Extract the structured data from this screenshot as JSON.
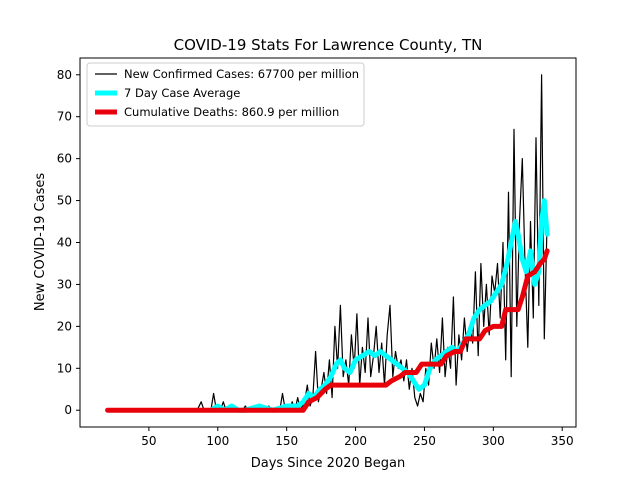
{
  "chart_data": {
    "type": "line",
    "title": "COVID-19 Stats For Lawrence County, TN",
    "xlabel": "Days Since 2020 Began",
    "ylabel": "New COVID-19 Cases",
    "xlim": [
      0,
      360
    ],
    "ylim": [
      -4,
      84
    ],
    "xticks": [
      50,
      100,
      150,
      200,
      250,
      300,
      350
    ],
    "yticks": [
      0,
      10,
      20,
      30,
      40,
      50,
      60,
      70,
      80
    ],
    "legend_position": "upper-left",
    "grid": false,
    "series": [
      {
        "name": "New Confirmed Cases: 67700 per million",
        "color": "#000000",
        "style": "thin",
        "points": [
          [
            20,
            0
          ],
          [
            85,
            0
          ],
          [
            88,
            2
          ],
          [
            90,
            0
          ],
          [
            95,
            0
          ],
          [
            97,
            4
          ],
          [
            99,
            0
          ],
          [
            100,
            1
          ],
          [
            102,
            0
          ],
          [
            104,
            2
          ],
          [
            106,
            0
          ],
          [
            110,
            1
          ],
          [
            112,
            0
          ],
          [
            118,
            0
          ],
          [
            120,
            1
          ],
          [
            122,
            0
          ],
          [
            126,
            0
          ],
          [
            128,
            1
          ],
          [
            130,
            0
          ],
          [
            135,
            0
          ],
          [
            137,
            1
          ],
          [
            139,
            0
          ],
          [
            145,
            0
          ],
          [
            147,
            4
          ],
          [
            149,
            0
          ],
          [
            152,
            0
          ],
          [
            154,
            2
          ],
          [
            156,
            0
          ],
          [
            158,
            3
          ],
          [
            160,
            0
          ],
          [
            163,
            2
          ],
          [
            165,
            6
          ],
          [
            167,
            1
          ],
          [
            169,
            3
          ],
          [
            171,
            14
          ],
          [
            173,
            2
          ],
          [
            175,
            5
          ],
          [
            177,
            9
          ],
          [
            179,
            4
          ],
          [
            181,
            12
          ],
          [
            183,
            3
          ],
          [
            185,
            20
          ],
          [
            187,
            10
          ],
          [
            189,
            25
          ],
          [
            191,
            8
          ],
          [
            193,
            12
          ],
          [
            195,
            6
          ],
          [
            197,
            18
          ],
          [
            199,
            10
          ],
          [
            201,
            23
          ],
          [
            203,
            6
          ],
          [
            205,
            15
          ],
          [
            207,
            9
          ],
          [
            209,
            22
          ],
          [
            211,
            8
          ],
          [
            213,
            13
          ],
          [
            215,
            20
          ],
          [
            217,
            9
          ],
          [
            219,
            16
          ],
          [
            221,
            6
          ],
          [
            223,
            18
          ],
          [
            225,
            25
          ],
          [
            227,
            8
          ],
          [
            229,
            14
          ],
          [
            231,
            10
          ],
          [
            233,
            12
          ],
          [
            235,
            7
          ],
          [
            237,
            12
          ],
          [
            239,
            5
          ],
          [
            241,
            10
          ],
          [
            243,
            3
          ],
          [
            245,
            1
          ],
          [
            247,
            4
          ],
          [
            249,
            2
          ],
          [
            251,
            10
          ],
          [
            253,
            6
          ],
          [
            255,
            16
          ],
          [
            257,
            10
          ],
          [
            259,
            17
          ],
          [
            261,
            9
          ],
          [
            263,
            22
          ],
          [
            265,
            8
          ],
          [
            267,
            15
          ],
          [
            269,
            10
          ],
          [
            271,
            27
          ],
          [
            273,
            6
          ],
          [
            275,
            18
          ],
          [
            277,
            12
          ],
          [
            279,
            22
          ],
          [
            281,
            14
          ],
          [
            283,
            20
          ],
          [
            285,
            16
          ],
          [
            287,
            33
          ],
          [
            289,
            13
          ],
          [
            291,
            35
          ],
          [
            293,
            20
          ],
          [
            295,
            30
          ],
          [
            297,
            18
          ],
          [
            299,
            32
          ],
          [
            301,
            28
          ],
          [
            303,
            35
          ],
          [
            305,
            22
          ],
          [
            307,
            40
          ],
          [
            309,
            12
          ],
          [
            311,
            52
          ],
          [
            313,
            8
          ],
          [
            315,
            67
          ],
          [
            317,
            20
          ],
          [
            319,
            45
          ],
          [
            321,
            60
          ],
          [
            323,
            35
          ],
          [
            325,
            15
          ],
          [
            327,
            45
          ],
          [
            329,
            22
          ],
          [
            331,
            65
          ],
          [
            333,
            25
          ],
          [
            335,
            80
          ],
          [
            337,
            17
          ],
          [
            339,
            45
          ]
        ]
      },
      {
        "name": "7 Day Case Average",
        "color": "#00ffff",
        "style": "thick",
        "points": [
          [
            95,
            0
          ],
          [
            100,
            1
          ],
          [
            105,
            0
          ],
          [
            110,
            1
          ],
          [
            115,
            0
          ],
          [
            120,
            0
          ],
          [
            130,
            1
          ],
          [
            140,
            0
          ],
          [
            150,
            1
          ],
          [
            158,
            1
          ],
          [
            162,
            2
          ],
          [
            166,
            4
          ],
          [
            170,
            3
          ],
          [
            174,
            5
          ],
          [
            178,
            6
          ],
          [
            182,
            8
          ],
          [
            186,
            11
          ],
          [
            189,
            12
          ],
          [
            192,
            10
          ],
          [
            196,
            9
          ],
          [
            200,
            12
          ],
          [
            205,
            13
          ],
          [
            210,
            14
          ],
          [
            214,
            13
          ],
          [
            218,
            14
          ],
          [
            222,
            13
          ],
          [
            226,
            12
          ],
          [
            230,
            11
          ],
          [
            234,
            10
          ],
          [
            238,
            9
          ],
          [
            242,
            7
          ],
          [
            246,
            5
          ],
          [
            250,
            6
          ],
          [
            254,
            10
          ],
          [
            258,
            12
          ],
          [
            262,
            13
          ],
          [
            266,
            14
          ],
          [
            270,
            15
          ],
          [
            274,
            14
          ],
          [
            278,
            16
          ],
          [
            282,
            18
          ],
          [
            286,
            22
          ],
          [
            290,
            24
          ],
          [
            294,
            25
          ],
          [
            298,
            26
          ],
          [
            302,
            28
          ],
          [
            306,
            30
          ],
          [
            310,
            35
          ],
          [
            313,
            40
          ],
          [
            316,
            45
          ],
          [
            318,
            42
          ],
          [
            321,
            36
          ],
          [
            324,
            33
          ],
          [
            327,
            38
          ],
          [
            330,
            30
          ],
          [
            333,
            33
          ],
          [
            335,
            45
          ],
          [
            337,
            50
          ],
          [
            339,
            42
          ]
        ]
      },
      {
        "name": "Cumulative Deaths: 860.9 per million",
        "color": "#e8000b",
        "style": "thick",
        "points": [
          [
            20,
            0
          ],
          [
            162,
            0
          ],
          [
            166,
            2
          ],
          [
            172,
            3
          ],
          [
            178,
            5
          ],
          [
            182,
            6
          ],
          [
            186,
            6
          ],
          [
            205,
            6
          ],
          [
            222,
            6
          ],
          [
            226,
            7
          ],
          [
            232,
            8
          ],
          [
            236,
            9
          ],
          [
            244,
            9
          ],
          [
            248,
            11
          ],
          [
            262,
            11
          ],
          [
            266,
            13
          ],
          [
            272,
            14
          ],
          [
            276,
            14
          ],
          [
            280,
            17
          ],
          [
            290,
            17
          ],
          [
            294,
            19
          ],
          [
            300,
            20
          ],
          [
            306,
            20
          ],
          [
            309,
            24
          ],
          [
            318,
            24
          ],
          [
            321,
            27
          ],
          [
            325,
            32
          ],
          [
            330,
            33
          ],
          [
            334,
            35
          ],
          [
            337,
            36
          ],
          [
            339,
            38
          ]
        ]
      }
    ]
  }
}
